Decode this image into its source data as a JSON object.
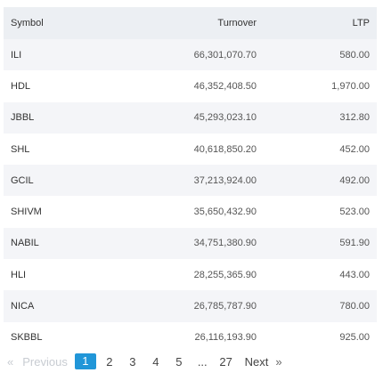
{
  "table": {
    "headers": {
      "symbol": "Symbol",
      "turnover": "Turnover",
      "ltp": "LTP"
    },
    "rows": [
      {
        "symbol": "ILI",
        "turnover": "66,301,070.70",
        "ltp": "580.00"
      },
      {
        "symbol": "HDL",
        "turnover": "46,352,408.50",
        "ltp": "1,970.00"
      },
      {
        "symbol": "JBBL",
        "turnover": "45,293,023.10",
        "ltp": "312.80"
      },
      {
        "symbol": "SHL",
        "turnover": "40,618,850.20",
        "ltp": "452.00"
      },
      {
        "symbol": "GCIL",
        "turnover": "37,213,924.00",
        "ltp": "492.00"
      },
      {
        "symbol": "SHIVM",
        "turnover": "35,650,432.90",
        "ltp": "523.00"
      },
      {
        "symbol": "NABIL",
        "turnover": "34,751,380.90",
        "ltp": "591.90"
      },
      {
        "symbol": "HLI",
        "turnover": "28,255,365.90",
        "ltp": "443.00"
      },
      {
        "symbol": "NICA",
        "turnover": "26,785,787.90",
        "ltp": "780.00"
      },
      {
        "symbol": "SKBBL",
        "turnover": "26,116,193.90",
        "ltp": "925.00"
      }
    ]
  },
  "pagination": {
    "prev_arrow": "«",
    "prev_label": "Previous",
    "pages": [
      "1",
      "2",
      "3",
      "4",
      "5"
    ],
    "current": "1",
    "ellipsis": "...",
    "last_page": "27",
    "next_label": "Next",
    "next_arrow": "»",
    "accent": "#2196d8"
  }
}
